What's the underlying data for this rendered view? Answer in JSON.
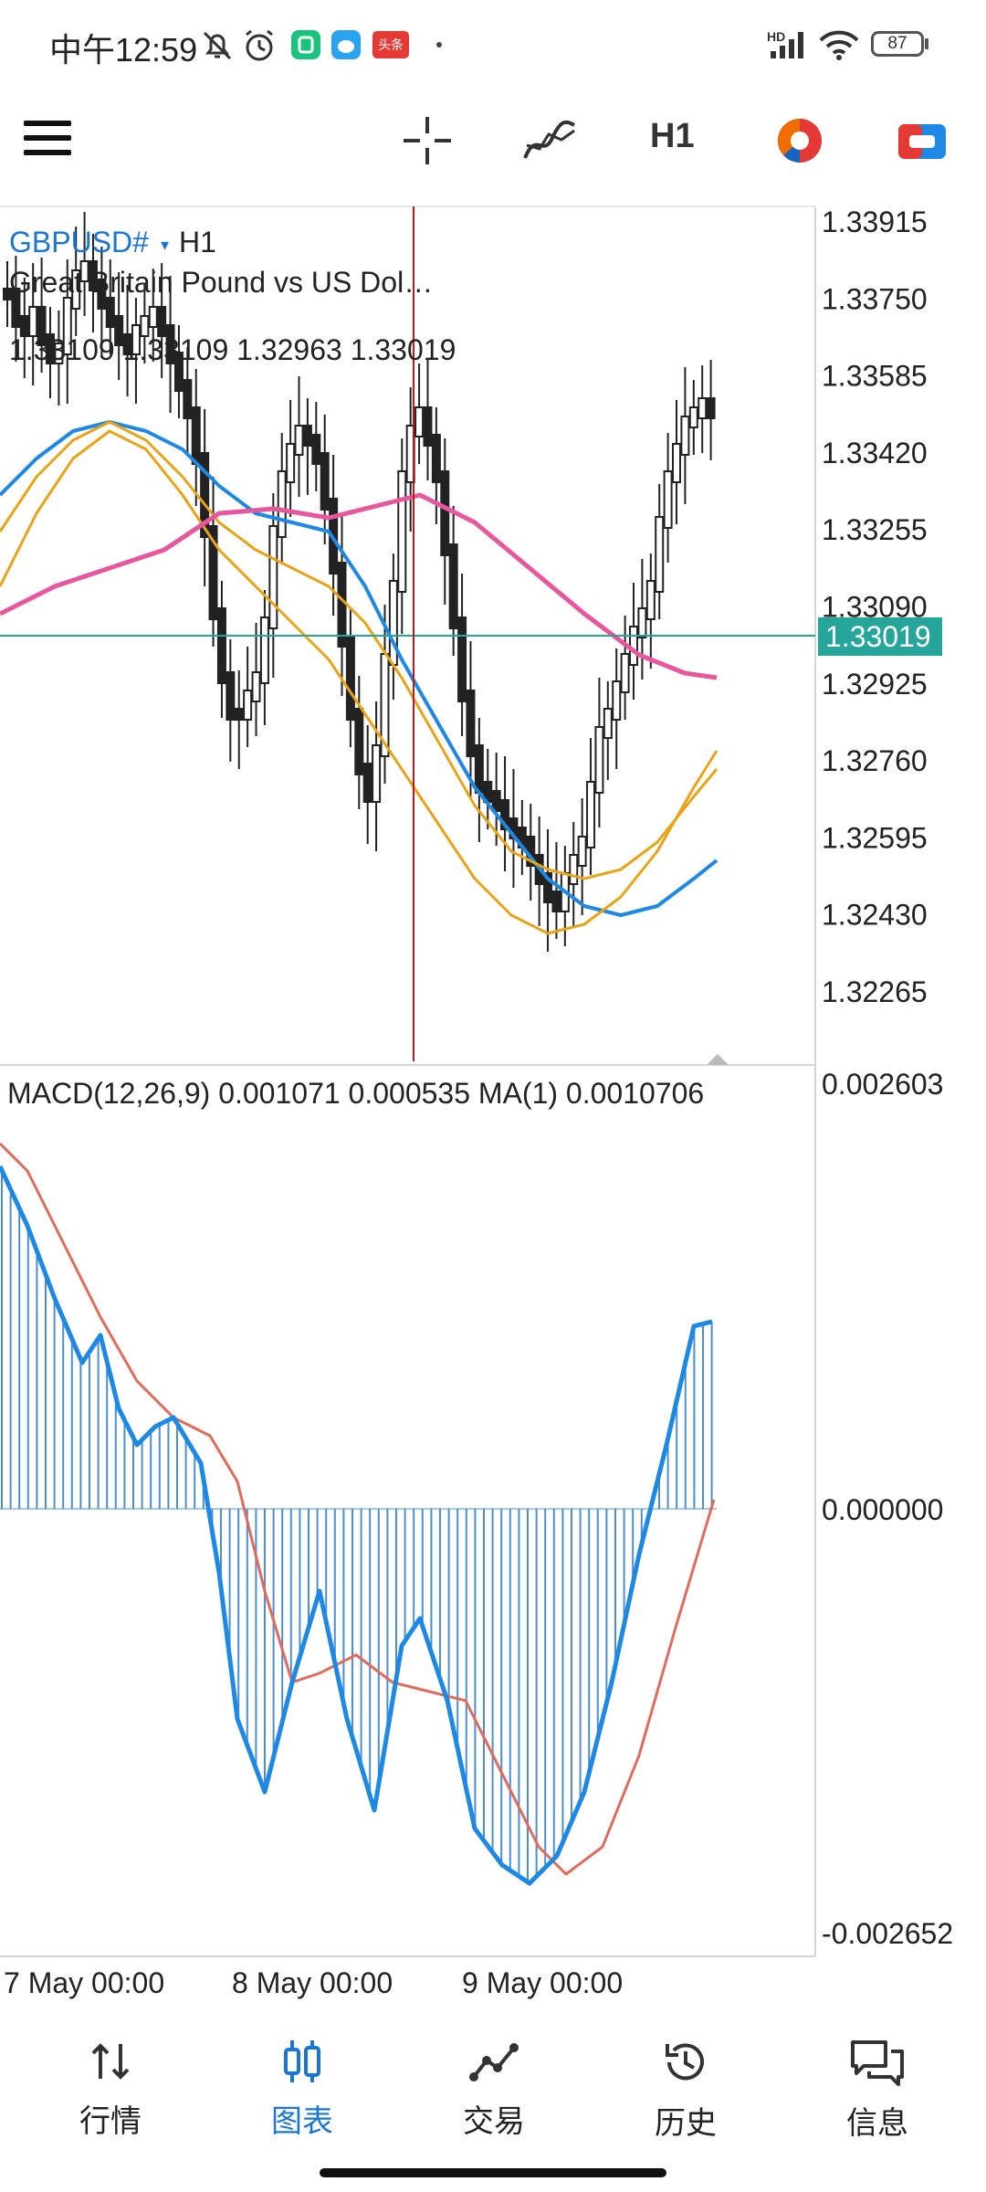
{
  "status_bar": {
    "time": "中午12:59",
    "news_badge": "头条",
    "network": "HD",
    "battery": "87"
  },
  "toolbar": {
    "timeframe": "H1"
  },
  "chart": {
    "symbol": "GBPUSD#",
    "timeframe": "H1",
    "description": "Great Britain Pound vs US Dol…",
    "ohlc": "1.33109 1.33109 1.32963 1.33019",
    "price_levels": [
      "1.33915",
      "1.33750",
      "1.33585",
      "1.33420",
      "1.33255",
      "1.33090",
      "1.32925",
      "1.32760",
      "1.32595",
      "1.32430",
      "1.32265"
    ],
    "current_price": "1.33019",
    "colors": {
      "bid_line": "#26a69a",
      "crosshair": "#b71c1c",
      "ma_fast_blue": "#1e88e5",
      "ma_orange": "#e8a317",
      "ma_slow_pink": "#e8579e",
      "candle": "#222222"
    },
    "macd": {
      "label": "MACD(12,26,9) 0.001071 0.000535 MA(1) 0.0010706",
      "levels": [
        "0.002603",
        "0.000000",
        "-0.002652"
      ],
      "histogram_color": "#4a8fd6",
      "signal_color": "#e06b5a"
    },
    "time_labels": [
      "7 May 00:00",
      "8 May 00:00",
      "9 May 00:00"
    ]
  },
  "tabs": [
    {
      "label": "行情",
      "icon": "quotes-icon"
    },
    {
      "label": "图表",
      "icon": "chart-icon"
    },
    {
      "label": "交易",
      "icon": "trade-icon"
    },
    {
      "label": "历史",
      "icon": "history-icon"
    },
    {
      "label": "信息",
      "icon": "messages-icon"
    }
  ],
  "active_tab": "图表"
}
